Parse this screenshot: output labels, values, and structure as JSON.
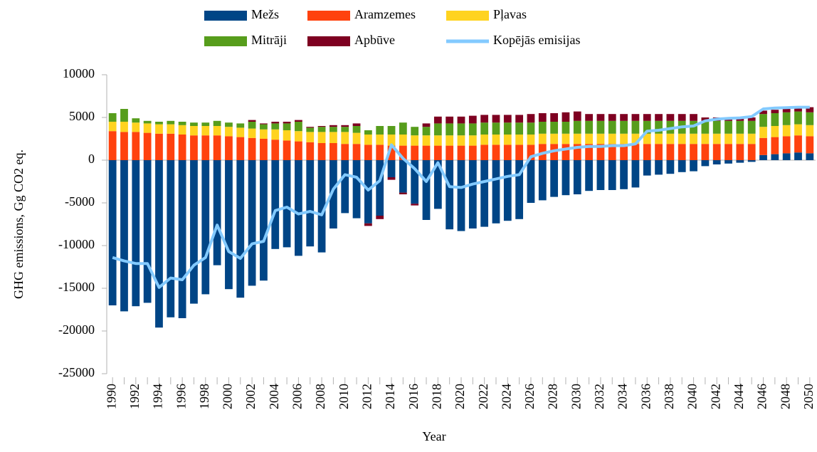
{
  "chart_data": {
    "type": "bar",
    "y_label": "GHG emissions, Gg CO2 eq.",
    "x_label": "Year",
    "categories": [
      "1990",
      null,
      "1992",
      null,
      "1994",
      null,
      "1996",
      null,
      "1998",
      null,
      "2000",
      null,
      "2002",
      null,
      "2004",
      null,
      "2006",
      null,
      "2008",
      null,
      "2010",
      null,
      "2012",
      null,
      "2014",
      null,
      "2016",
      null,
      "2018",
      null,
      "2020",
      null,
      "2022",
      null,
      "2024",
      null,
      "2026",
      null,
      "2028",
      null,
      "2030",
      null,
      "2032",
      null,
      "2034",
      null,
      "2036",
      null,
      "2038",
      null,
      "2040",
      null,
      "2042",
      null,
      "2044",
      null,
      "2046",
      null,
      "2048",
      null,
      "2050"
    ],
    "series": [
      {
        "name": "Mežs",
        "color": "#004586",
        "values": [
          -17000,
          -17700,
          -17100,
          -16700,
          -19600,
          -18400,
          -18500,
          -16800,
          -15700,
          -12300,
          -15100,
          -16100,
          -14700,
          -14100,
          -10400,
          -10200,
          -11200,
          -10100,
          -10800,
          -8000,
          -6200,
          -6800,
          -7400,
          -6500,
          -2000,
          -3800,
          -5100,
          -7000,
          -5700,
          -8100,
          -8300,
          -8000,
          -7800,
          -7400,
          -7100,
          -6900,
          -5000,
          -4700,
          -4300,
          -4100,
          -4000,
          -3600,
          -3500,
          -3500,
          -3400,
          -3200,
          -1800,
          -1700,
          -1600,
          -1400,
          -1300,
          -700,
          -500,
          -400,
          -300,
          -200,
          600,
          700,
          800,
          900,
          800
        ]
      },
      {
        "name": "Aramzemes",
        "color": "#ff420e",
        "values": [
          3400,
          3300,
          3300,
          3200,
          3100,
          3100,
          3000,
          2900,
          2900,
          2900,
          2800,
          2700,
          2600,
          2500,
          2400,
          2300,
          2200,
          2100,
          2000,
          2000,
          1900,
          1900,
          1800,
          1800,
          1700,
          1700,
          1700,
          1700,
          1700,
          1700,
          1700,
          1700,
          1800,
          1800,
          1800,
          1800,
          1800,
          1900,
          1900,
          1900,
          1900,
          1900,
          1900,
          1900,
          1900,
          1900,
          1900,
          1900,
          1900,
          1900,
          1900,
          1900,
          1900,
          1900,
          1900,
          1900,
          2000,
          2000,
          2000,
          2000,
          2000
        ]
      },
      {
        "name": "Pļavas",
        "color": "#ffd320",
        "values": [
          1100,
          1200,
          1100,
          1100,
          1100,
          1100,
          1100,
          1100,
          1100,
          1100,
          1100,
          1100,
          1100,
          1100,
          1200,
          1200,
          1200,
          1200,
          1300,
          1300,
          1400,
          1300,
          1200,
          1200,
          1300,
          1300,
          1200,
          1200,
          1200,
          1200,
          1200,
          1200,
          1200,
          1200,
          1200,
          1200,
          1200,
          1200,
          1200,
          1200,
          1200,
          1200,
          1200,
          1200,
          1200,
          1200,
          1200,
          1200,
          1200,
          1200,
          1200,
          1200,
          1200,
          1200,
          1200,
          1200,
          1300,
          1300,
          1300,
          1300,
          1300
        ]
      },
      {
        "name": "Mitrāji",
        "color": "#579d1c",
        "values": [
          1000,
          1500,
          500,
          300,
          300,
          400,
          400,
          400,
          400,
          600,
          500,
          500,
          800,
          600,
          700,
          800,
          1100,
          500,
          600,
          600,
          600,
          800,
          500,
          1000,
          1000,
          1400,
          1000,
          1000,
          1400,
          1400,
          1400,
          1400,
          1400,
          1400,
          1400,
          1400,
          1400,
          1400,
          1400,
          1400,
          1500,
          1500,
          1500,
          1500,
          1500,
          1500,
          1500,
          1500,
          1500,
          1500,
          1500,
          1500,
          1500,
          1500,
          1500,
          1500,
          1500,
          1500,
          1500,
          1500,
          1500
        ]
      },
      {
        "name": "Apbūve",
        "color": "#7e0021",
        "values": [
          0,
          0,
          0,
          0,
          0,
          0,
          0,
          0,
          0,
          0,
          0,
          0,
          200,
          100,
          200,
          200,
          200,
          100,
          100,
          200,
          200,
          300,
          -300,
          -400,
          -300,
          -200,
          -200,
          400,
          800,
          800,
          800,
          900,
          900,
          900,
          900,
          900,
          1000,
          1000,
          1000,
          1100,
          1100,
          800,
          800,
          800,
          800,
          800,
          800,
          800,
          800,
          800,
          800,
          400,
          400,
          400,
          400,
          400,
          400,
          400,
          500,
          500,
          600
        ]
      },
      {
        "name": "Kopējās emisijas",
        "color": "#83caff",
        "line": true,
        "values": [
          -11400,
          -11800,
          -12100,
          -12100,
          -14900,
          -13800,
          -14000,
          -12300,
          -11400,
          -7600,
          -10700,
          -11500,
          -9800,
          -9500,
          -5900,
          -5500,
          -6300,
          -6000,
          -6400,
          -3400,
          -1700,
          -2000,
          -3500,
          -2400,
          1800,
          200,
          -1000,
          -2500,
          -300,
          -3100,
          -3200,
          -2800,
          -2500,
          -2200,
          -1900,
          -1700,
          400,
          800,
          1100,
          1300,
          1500,
          1600,
          1600,
          1700,
          1700,
          1900,
          3400,
          3500,
          3700,
          3900,
          4000,
          4600,
          4800,
          4900,
          4950,
          5100,
          6000,
          6100,
          6150,
          6200,
          6200
        ]
      }
    ],
    "ylim": [
      -25000,
      10000
    ],
    "yticks": [
      10000,
      5000,
      0,
      -5000,
      -10000,
      -15000,
      -20000,
      -25000
    ]
  }
}
